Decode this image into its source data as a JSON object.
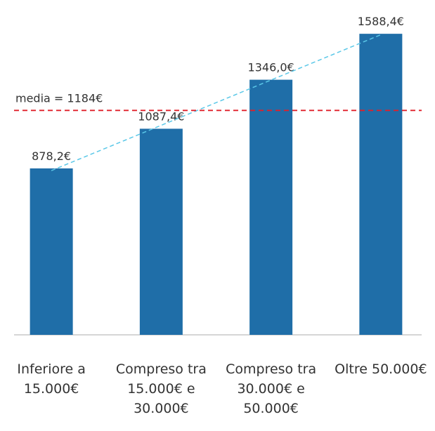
{
  "chart_data": {
    "type": "bar",
    "categories": [
      "Inferiore a 15.000€",
      "Compreso tra 15.000€ e 30.000€",
      "Compreso tra 30.000€ e 50.000€",
      "Oltre 50.000€"
    ],
    "values": [
      878.2,
      1087.4,
      1346.0,
      1588.4
    ],
    "value_labels": [
      "878,2€",
      "1087,4€",
      "1346,0€",
      "1588,4€"
    ],
    "color": "#1f6ea8",
    "ylim": [
      0,
      1600
    ],
    "reference_line": {
      "value": 1184,
      "label": "media = 1184€",
      "color": "#e0202a"
    },
    "trendline": {
      "color": "#5bc8e8"
    }
  }
}
